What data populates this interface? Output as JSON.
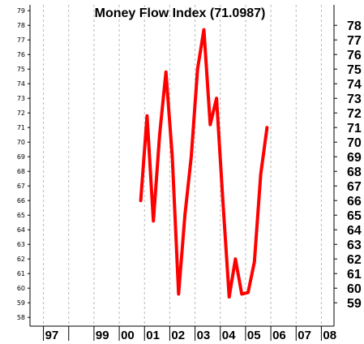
{
  "chart_data": {
    "type": "line",
    "title": "Money Flow Index (71.0987)",
    "xlabel": "",
    "ylabel": "",
    "x_tick_labels": [
      "97",
      "99",
      "00",
      "01",
      "02",
      "03",
      "04",
      "05",
      "06",
      "07",
      "08"
    ],
    "y_left_ticks": [
      79,
      78,
      77,
      76,
      75,
      74,
      73,
      72,
      71,
      70,
      69,
      68,
      67,
      66,
      65,
      64,
      63,
      62,
      61,
      60,
      59,
      58
    ],
    "y_right_ticks": [
      78,
      77,
      76,
      75,
      74,
      73,
      72,
      71,
      70,
      69,
      68,
      67,
      66,
      65,
      64,
      63,
      62,
      61,
      60,
      59
    ],
    "ylim": [
      57.4,
      79.4
    ],
    "xlim": [
      1996.5,
      2008.5
    ],
    "grid": true,
    "series": [
      {
        "color": "#ff0000",
        "x": [
          2000.85,
          2001.1,
          2001.35,
          2001.6,
          2001.85,
          2002.1,
          2002.35,
          2002.6,
          2002.85,
          2003.1,
          2003.35,
          2003.6,
          2003.85,
          2004.1,
          2004.35,
          2004.6,
          2004.85,
          2005.1,
          2005.35,
          2005.6,
          2005.85
        ],
        "y": [
          66.0,
          71.8,
          64.6,
          70.5,
          74.8,
          69.0,
          59.6,
          65.0,
          69.0,
          75.0,
          77.7,
          71.2,
          73.0,
          66.0,
          59.4,
          62.0,
          59.6,
          59.7,
          61.8,
          67.8,
          71.0
        ]
      }
    ]
  }
}
